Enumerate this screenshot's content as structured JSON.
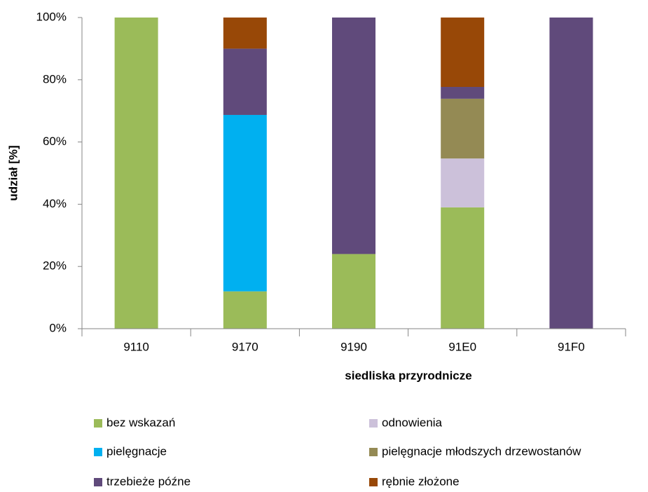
{
  "chart_data": {
    "type": "bar",
    "stacked": true,
    "xlabel": "siedliska przyrodnicze",
    "ylabel": "udział [%]",
    "categories": [
      "9110",
      "9170",
      "9190",
      "91E0",
      "91F0"
    ],
    "series": [
      {
        "name": "bez wskazań",
        "color": "#9BBB59",
        "values": [
          100,
          12,
          24,
          39,
          0
        ]
      },
      {
        "name": "odnowienia",
        "color": "#CCC1DA",
        "values": [
          0,
          0,
          0,
          15.7,
          0
        ]
      },
      {
        "name": "pielęgnacje",
        "color": "#00B0F0",
        "values": [
          0,
          56.7,
          0,
          0,
          0
        ]
      },
      {
        "name": "pielęgnacje młodszych drzewostanów",
        "color": "#948A54",
        "values": [
          0,
          0,
          0,
          19.2,
          0
        ]
      },
      {
        "name": "trzebieże późne",
        "color": "#604A7B",
        "values": [
          0,
          21.3,
          76,
          3.8,
          100
        ]
      },
      {
        "name": "rębnie złożone",
        "color": "#984807",
        "values": [
          0,
          10,
          0,
          22.3,
          0
        ]
      }
    ],
    "ylim": [
      0,
      100
    ],
    "yticks": [
      {
        "value": 0,
        "label": "0%"
      },
      {
        "value": 20,
        "label": "20%"
      },
      {
        "value": 40,
        "label": "40%"
      },
      {
        "value": 60,
        "label": "60%"
      },
      {
        "value": 80,
        "label": "80%"
      },
      {
        "value": 100,
        "label": "100%"
      }
    ],
    "grid": false,
    "legend": "bottom"
  }
}
